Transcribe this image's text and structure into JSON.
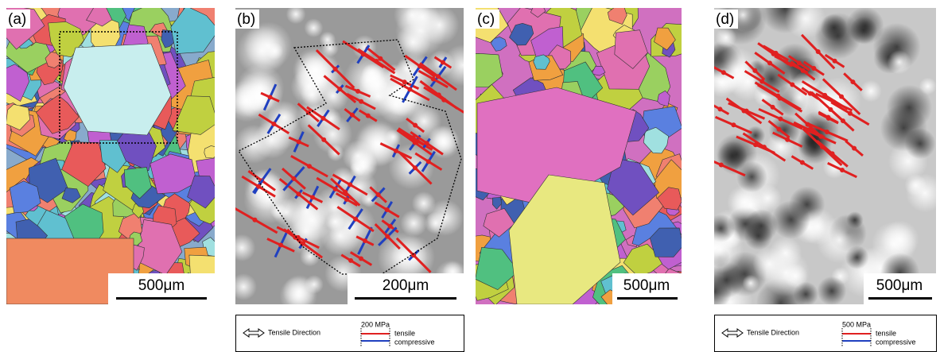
{
  "panels": [
    {
      "label": "(a)",
      "scale_bar": "500μm"
    },
    {
      "label": "(b)",
      "scale_bar": "200μm"
    },
    {
      "label": "(c)",
      "scale_bar": "500μm"
    },
    {
      "label": "(d)",
      "scale_bar": "500μm"
    }
  ],
  "legends": [
    {
      "direction": "Tensile Direction",
      "scale": "200 MPa",
      "tensile": "tensile",
      "compressive": "compressive"
    },
    {
      "direction": "Tensile Direction",
      "scale": "500 MPa",
      "tensile": "tensile",
      "compressive": "compressive"
    }
  ]
}
